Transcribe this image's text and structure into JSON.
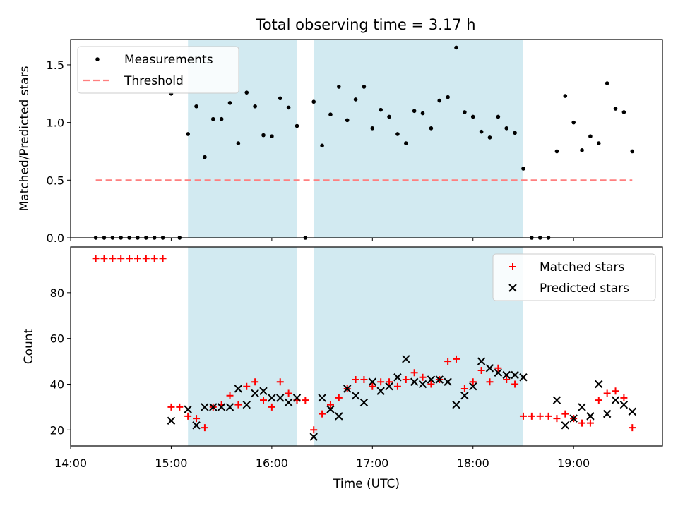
{
  "figure_title": "Total observing time = 3.17 h",
  "colors": {
    "shade": "#add8e6",
    "measurement": "#000000",
    "threshold": "#ff7f7f",
    "matched": "#ff0000",
    "predicted": "#000000"
  },
  "chart_data": [
    {
      "type": "scatter",
      "title": "Total observing time = 3.17 h",
      "xlabel": "",
      "ylabel": "Matched/Predicted stars",
      "xlim": [
        "14:00",
        "19:53"
      ],
      "ylim": [
        0,
        1.72
      ],
      "yticks": [
        "0.0",
        "0.5",
        "1.0",
        "1.5"
      ],
      "xticks": [
        "14:00",
        "15:00",
        "16:00",
        "17:00",
        "18:00",
        "19:00"
      ],
      "grid": false,
      "legend_position": "top-left",
      "legend": [
        {
          "label": "Measurements",
          "marker": "dot"
        },
        {
          "label": "Threshold",
          "marker": "dashed-line"
        }
      ],
      "shaded_intervals": [
        [
          "15:10",
          "16:15"
        ],
        [
          "16:25",
          "18:30"
        ]
      ],
      "threshold": {
        "y": 0.5,
        "x_range": [
          "14:15",
          "19:35"
        ]
      },
      "series": [
        {
          "name": "Measurements",
          "points": [
            [
              "14:15",
              0
            ],
            [
              "14:20",
              0
            ],
            [
              "14:25",
              0
            ],
            [
              "14:30",
              0
            ],
            [
              "14:35",
              0
            ],
            [
              "14:40",
              0
            ],
            [
              "14:45",
              0
            ],
            [
              "14:50",
              0
            ],
            [
              "14:55",
              0
            ],
            [
              "15:00",
              1.25
            ],
            [
              "15:05",
              0
            ],
            [
              "15:10",
              0.9
            ],
            [
              "15:15",
              1.14
            ],
            [
              "15:20",
              0.7
            ],
            [
              "15:25",
              1.03
            ],
            [
              "15:30",
              1.03
            ],
            [
              "15:35",
              1.17
            ],
            [
              "15:40",
              0.82
            ],
            [
              "15:45",
              1.26
            ],
            [
              "15:50",
              1.14
            ],
            [
              "15:55",
              0.89
            ],
            [
              "16:00",
              0.88
            ],
            [
              "16:05",
              1.21
            ],
            [
              "16:10",
              1.13
            ],
            [
              "16:15",
              0.97
            ],
            [
              "16:20",
              0
            ],
            [
              "16:25",
              1.18
            ],
            [
              "16:30",
              0.8
            ],
            [
              "16:35",
              1.07
            ],
            [
              "16:40",
              1.31
            ],
            [
              "16:45",
              1.02
            ],
            [
              "16:50",
              1.2
            ],
            [
              "16:55",
              1.31
            ],
            [
              "17:00",
              0.95
            ],
            [
              "17:05",
              1.11
            ],
            [
              "17:10",
              1.05
            ],
            [
              "17:15",
              0.9
            ],
            [
              "17:20",
              0.82
            ],
            [
              "17:25",
              1.1
            ],
            [
              "17:30",
              1.08
            ],
            [
              "17:35",
              0.95
            ],
            [
              "17:40",
              1.19
            ],
            [
              "17:45",
              1.22
            ],
            [
              "17:50",
              1.65
            ],
            [
              "17:55",
              1.09
            ],
            [
              "18:00",
              1.05
            ],
            [
              "18:05",
              0.92
            ],
            [
              "18:10",
              0.87
            ],
            [
              "18:15",
              1.05
            ],
            [
              "18:20",
              0.95
            ],
            [
              "18:25",
              0.91
            ],
            [
              "18:30",
              0.6
            ],
            [
              "18:35",
              0
            ],
            [
              "18:40",
              0
            ],
            [
              "18:45",
              0
            ],
            [
              "18:50",
              0.75
            ],
            [
              "18:55",
              1.23
            ],
            [
              "19:00",
              1.0
            ],
            [
              "19:05",
              0.76
            ],
            [
              "19:10",
              0.88
            ],
            [
              "19:15",
              0.82
            ],
            [
              "19:20",
              1.34
            ],
            [
              "19:25",
              1.12
            ],
            [
              "19:30",
              1.09
            ],
            [
              "19:35",
              0.75
            ]
          ]
        }
      ]
    },
    {
      "type": "scatter",
      "title": "",
      "xlabel": "Time (UTC)",
      "ylabel": "Count",
      "xlim": [
        "14:00",
        "19:53"
      ],
      "ylim": [
        13,
        100
      ],
      "yticks": [
        "20",
        "40",
        "60",
        "80"
      ],
      "xticks": [
        "14:00",
        "15:00",
        "16:00",
        "17:00",
        "18:00",
        "19:00"
      ],
      "grid": false,
      "legend_position": "top-right",
      "legend": [
        {
          "label": "Matched stars",
          "marker": "plus"
        },
        {
          "label": "Predicted stars",
          "marker": "x"
        }
      ],
      "shaded_intervals": [
        [
          "15:10",
          "16:15"
        ],
        [
          "16:25",
          "18:30"
        ]
      ],
      "series": [
        {
          "name": "Matched stars",
          "points": [
            [
              "14:15",
              95
            ],
            [
              "14:20",
              95
            ],
            [
              "14:25",
              95
            ],
            [
              "14:30",
              95
            ],
            [
              "14:35",
              95
            ],
            [
              "14:40",
              95
            ],
            [
              "14:45",
              95
            ],
            [
              "14:50",
              95
            ],
            [
              "14:55",
              95
            ],
            [
              "15:00",
              30
            ],
            [
              "15:05",
              30
            ],
            [
              "15:10",
              26
            ],
            [
              "15:15",
              25
            ],
            [
              "15:20",
              21
            ],
            [
              "15:25",
              30
            ],
            [
              "15:30",
              31
            ],
            [
              "15:35",
              35
            ],
            [
              "15:40",
              31
            ],
            [
              "15:45",
              39
            ],
            [
              "15:50",
              41
            ],
            [
              "15:55",
              33
            ],
            [
              "16:00",
              30
            ],
            [
              "16:05",
              41
            ],
            [
              "16:10",
              36
            ],
            [
              "16:15",
              33
            ],
            [
              "16:20",
              33
            ],
            [
              "16:25",
              20
            ],
            [
              "16:30",
              27
            ],
            [
              "16:35",
              31
            ],
            [
              "16:40",
              34
            ],
            [
              "16:45",
              38
            ],
            [
              "16:50",
              42
            ],
            [
              "16:55",
              42
            ],
            [
              "17:00",
              39
            ],
            [
              "17:05",
              41
            ],
            [
              "17:10",
              41
            ],
            [
              "17:15",
              39
            ],
            [
              "17:20",
              42
            ],
            [
              "17:25",
              45
            ],
            [
              "17:30",
              43
            ],
            [
              "17:35",
              40
            ],
            [
              "17:40",
              42
            ],
            [
              "17:45",
              50
            ],
            [
              "17:50",
              51
            ],
            [
              "17:55",
              38
            ],
            [
              "18:00",
              41
            ],
            [
              "18:05",
              46
            ],
            [
              "18:10",
              41
            ],
            [
              "18:15",
              47
            ],
            [
              "18:20",
              42
            ],
            [
              "18:25",
              40
            ],
            [
              "18:30",
              26
            ],
            [
              "18:35",
              26
            ],
            [
              "18:40",
              26
            ],
            [
              "18:45",
              26
            ],
            [
              "18:50",
              25
            ],
            [
              "18:55",
              27
            ],
            [
              "19:00",
              25
            ],
            [
              "19:05",
              23
            ],
            [
              "19:10",
              23
            ],
            [
              "19:15",
              33
            ],
            [
              "19:20",
              36
            ],
            [
              "19:25",
              37
            ],
            [
              "19:30",
              34
            ],
            [
              "19:35",
              21
            ]
          ]
        },
        {
          "name": "Predicted stars",
          "points": [
            [
              "15:00",
              24
            ],
            [
              "15:10",
              29
            ],
            [
              "15:15",
              22
            ],
            [
              "15:20",
              30
            ],
            [
              "15:25",
              30
            ],
            [
              "15:30",
              30
            ],
            [
              "15:35",
              30
            ],
            [
              "15:40",
              38
            ],
            [
              "15:45",
              31
            ],
            [
              "15:50",
              36
            ],
            [
              "15:55",
              37
            ],
            [
              "16:00",
              34
            ],
            [
              "16:05",
              34
            ],
            [
              "16:10",
              32
            ],
            [
              "16:15",
              34
            ],
            [
              "16:25",
              17
            ],
            [
              "16:30",
              34
            ],
            [
              "16:35",
              29
            ],
            [
              "16:40",
              26
            ],
            [
              "16:45",
              38
            ],
            [
              "16:50",
              35
            ],
            [
              "16:55",
              32
            ],
            [
              "17:00",
              41
            ],
            [
              "17:05",
              37
            ],
            [
              "17:10",
              39
            ],
            [
              "17:15",
              43
            ],
            [
              "17:20",
              51
            ],
            [
              "17:25",
              41
            ],
            [
              "17:30",
              40
            ],
            [
              "17:35",
              42
            ],
            [
              "17:40",
              42
            ],
            [
              "17:45",
              41
            ],
            [
              "17:50",
              31
            ],
            [
              "17:55",
              35
            ],
            [
              "18:00",
              39
            ],
            [
              "18:05",
              50
            ],
            [
              "18:10",
              47
            ],
            [
              "18:15",
              45
            ],
            [
              "18:20",
              44
            ],
            [
              "18:25",
              44
            ],
            [
              "18:30",
              43
            ],
            [
              "18:50",
              33
            ],
            [
              "18:55",
              22
            ],
            [
              "19:00",
              25
            ],
            [
              "19:05",
              30
            ],
            [
              "19:10",
              26
            ],
            [
              "19:15",
              40
            ],
            [
              "19:20",
              27
            ],
            [
              "19:25",
              33
            ],
            [
              "19:30",
              31
            ],
            [
              "19:35",
              28
            ]
          ]
        }
      ]
    }
  ]
}
